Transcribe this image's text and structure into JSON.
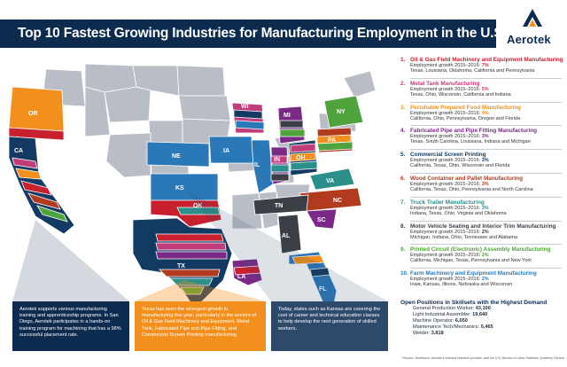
{
  "header": {
    "title": "Top 10 Fastest Growing Industries for Manufacturing Employment in the U.S.",
    "logo_text": "Aerotek",
    "logo_icon": "aerotek-chevron-logo"
  },
  "colors": {
    "navy": "#0d2a4f",
    "gray_state": "#b9bec6",
    "c1": "#c8202f",
    "c2": "#c13c7a",
    "c3": "#f3901d",
    "c4": "#7a2a86",
    "c5": "#123a63",
    "c6": "#b23a1e",
    "c7": "#2b8f8a",
    "c8": "#3b3f45",
    "c9": "#4fa33c",
    "c10": "#2a78b8"
  },
  "map": {
    "state_labels": {
      "OR": "OR",
      "CA": "CA",
      "NE": "NE",
      "KS": "KS",
      "OK": "OK",
      "TX": "TX",
      "IA": "IA",
      "WI": "WI",
      "IL": "IL",
      "IN": "IN",
      "MI": "MI",
      "OH": "OH",
      "PA": "PA",
      "NY": "NY",
      "VA": "VA",
      "NC": "NC",
      "SC": "SC",
      "TN": "TN",
      "AL": "AL",
      "LA": "LA",
      "FL": "FL"
    }
  },
  "callouts": {
    "c1_text": "Aerotek supports various manufacturing training and apprenticeship programs. In San Diego, Aerotek participates in a hands-on training program for machining that has a 98% successful placement rate.",
    "c2_text": "Texas has seen the strongest growth in manufacturing this year, particularly in the sectors of Oil & Gas Field Machinery and Equipment, Metal Tank, Fabricated Pipe and Pipe Fitting, and Commercial Screen Printing manufacturing.",
    "c3_text": "Today, states such as Kansas are covering the cost of career and technical education classes to help develop the next generation of skilled workers."
  },
  "industries": [
    {
      "num": "1.",
      "name": "Oil & Gas Field Machinery and Equipment Manufacturing",
      "growth_label": "Employment growth 2015–2016:",
      "growth": "7%",
      "states": "Texas, Louisiana, Oklahoma, California and Pennsylvania",
      "color": "#c8202f"
    },
    {
      "num": "2.",
      "name": "Metal Tank Manufacturing",
      "growth_label": "Employment growth 2015–2016:",
      "growth": "5%",
      "states": "Texas, Ohio, Wisconsin, California and Indiana",
      "color": "#c13c7a"
    },
    {
      "num": "3.",
      "name": "Perishable Prepared Food Manufacturing",
      "growth_label": "Employment growth 2015–2016:",
      "growth": "4%",
      "states": "California, Ohio, Pennsylvania, Oregon and Florida",
      "color": "#f3901d"
    },
    {
      "num": "4.",
      "name": "Fabricated Pipe and Pipe Fitting Manufacturing",
      "growth_label": "Employment growth 2015–2016:",
      "growth": "3%",
      "states": "Texas, South Carolina, Louisiana, Indiana and Michigan",
      "color": "#7a2a86"
    },
    {
      "num": "5.",
      "name": "Commercial Screen Printing",
      "growth_label": "Employment growth 2015–2016:",
      "growth": "3%",
      "states": "California, Texas, Ohio, Wisconsin and Florida",
      "color": "#123a63"
    },
    {
      "num": "6.",
      "name": "Wood Container and Pallet Manufacturing",
      "growth_label": "Employment growth 2015–2016:",
      "growth": "3%",
      "states": "California, Texas, Ohio, Pennsylvania and North Carolina",
      "color": "#b23a1e"
    },
    {
      "num": "7.",
      "name": "Truck Trailer Manufacturing",
      "growth_label": "Employment growth 2015–2016:",
      "growth": "3%",
      "states": "Indiana, Texas, Ohio, Virginia and Oklahoma",
      "color": "#2b8f8a"
    },
    {
      "num": "8.",
      "name": "Motor Vehicle Seating and Interior Trim Manufacturing",
      "growth_label": "Employment growth 2015–2016:",
      "growth": "2%",
      "states": "Michigan, Indiana, Ohio, Tennessee and Alabama",
      "color": "#3b3f45"
    },
    {
      "num": "9.",
      "name": "Printed Circuit (Electronic) Assembly Manufacturing",
      "growth_label": "Employment growth 2015–2016:",
      "growth": "2%",
      "states": "California, Michigan, Texas, Pennsylvania and New York",
      "color": "#4fa33c"
    },
    {
      "num": "10.",
      "name": "Farm Machinery and Equipment Manufacturing",
      "growth_label": "Employment growth 2015–2016:",
      "growth": "2%",
      "states": "Iowa, Kansas, Illinois, Nebraska and Wisconsin",
      "color": "#2a78b8"
    }
  ],
  "open_positions": {
    "title": "Open Positions in Skillsets with the Highest Demand",
    "rows": [
      {
        "label": "General Production Worker:",
        "value": "43,100"
      },
      {
        "label": "Light Industrial Assembler:",
        "value": "19,640"
      },
      {
        "label": "Machine Operator:",
        "value": "6,050"
      },
      {
        "label": "Maintenance Tech/Mechanics:",
        "value": "5,465"
      },
      {
        "label": "Welder:",
        "value": "3,818"
      }
    ]
  },
  "source": "*Source: Workforce, Aerotek's industry research provider, and the U.S. Bureau of Labor Statistics Quarterly Census."
}
